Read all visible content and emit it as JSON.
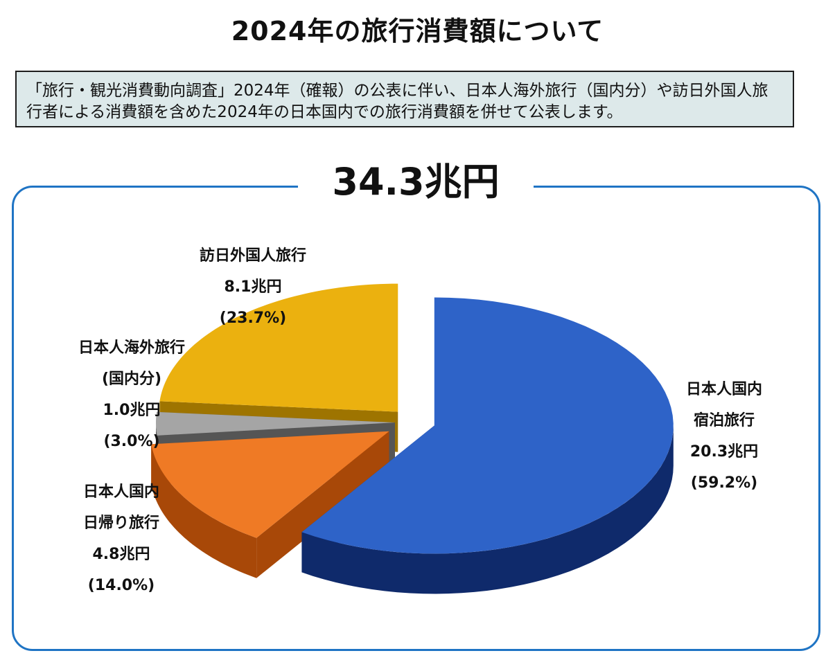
{
  "page": {
    "title": "2024年の旅行消費額について",
    "notice": "「旅行・観光消費動向調査」2024年（確報）の公表に伴い、日本人海外旅行（国内分）や訪日外国人旅行者による消費額を含めた2024年の日本国内での旅行消費額を併せて公表します。",
    "total": "34.3兆円"
  },
  "chart_data": {
    "type": "pie",
    "style": "3d-exploded",
    "total": "34.3兆円",
    "unit": "兆円",
    "slices": [
      {
        "label_lines": [
          "日本人国内",
          "宿泊旅行"
        ],
        "value": 20.3,
        "value_text": "20.3兆円",
        "percent": 59.2,
        "percent_text": "(59.2%)",
        "color": "#2e63c8",
        "side_color": "#0f2a6b"
      },
      {
        "label_lines": [
          "日本人国内",
          "日帰り旅行"
        ],
        "value": 4.8,
        "value_text": "4.8兆円",
        "percent": 14.0,
        "percent_text": "(14.0%)",
        "color": "#ef7a25",
        "side_color": "#a84808"
      },
      {
        "label_lines": [
          "日本人海外旅行",
          "(国内分)"
        ],
        "value": 1.0,
        "value_text": "1.0兆円",
        "percent": 3.0,
        "percent_text": "(3.0%)",
        "color": "#a5a5a5",
        "side_color": "#555555"
      },
      {
        "label_lines": [
          "訪日外国人旅行"
        ],
        "value": 8.1,
        "value_text": "8.1兆円",
        "percent": 23.7,
        "percent_text": "(23.7%)",
        "color": "#ebb10f",
        "side_color": "#9e7400"
      }
    ]
  }
}
